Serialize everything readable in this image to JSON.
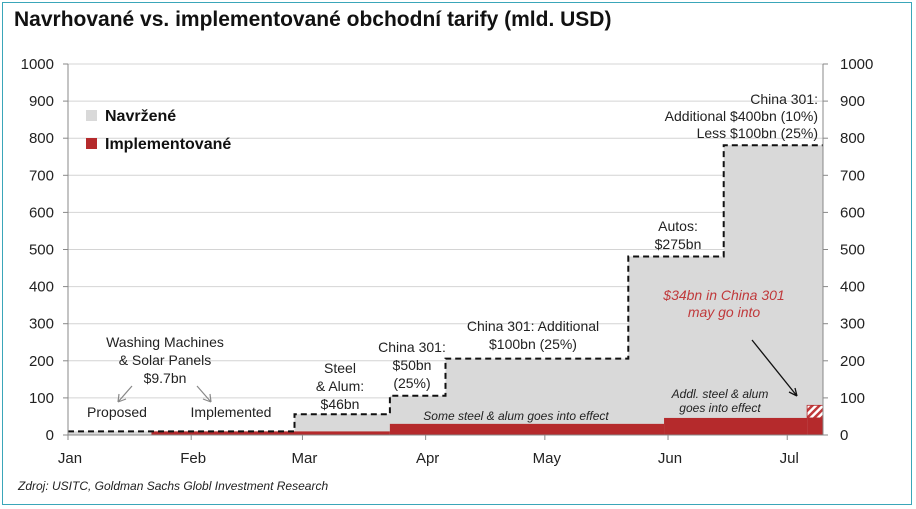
{
  "title": "Navrhované vs. implementované obchodní tarify (mld. USD)",
  "source": "Zdroj: USITC, Goldman Sachs Globl Investment Research",
  "colors": {
    "proposed": "#d9d9d9",
    "implemented": "#b52a2c",
    "accent_red_text": "#c0393b"
  },
  "chart_data": {
    "type": "area",
    "title": "Navrhované vs. implementované obchodní tarify (mld. USD)",
    "x_axis": {
      "ticks": [
        "Jan",
        "Feb",
        "Mar",
        "Apr",
        "May",
        "Jun",
        "Jul"
      ],
      "range": [
        "2018-01-01",
        "2018-07-10"
      ]
    },
    "y_axis": {
      "ticks": [
        "0",
        "100",
        "200",
        "300",
        "400",
        "500",
        "600",
        "700",
        "800",
        "900",
        "1000"
      ],
      "range": [
        0,
        1000
      ],
      "right_axis_mirrored": true
    },
    "grid": true,
    "legend": {
      "position": "top-left",
      "entries": [
        "Navržené",
        "Implementované"
      ]
    },
    "series": [
      {
        "name": "Navržené",
        "style": "step-area-dashed",
        "x": [
          "2018-01-01",
          "2018-02-27",
          "2018-03-23",
          "2018-04-06",
          "2018-05-22",
          "2018-06-15",
          "2018-07-10"
        ],
        "y": [
          9.7,
          56,
          106,
          206,
          481,
          781,
          781
        ]
      },
      {
        "name": "Implementované",
        "style": "step-area",
        "x": [
          "2018-01-01",
          "2018-01-22",
          "2018-03-23",
          "2018-05-31",
          "2018-07-06",
          "2018-07-10"
        ],
        "y": [
          0,
          9.7,
          30,
          46,
          80,
          80
        ]
      }
    ],
    "annotations": {
      "washing": [
        "Washing Machines",
        "& Solar Panels",
        "$9.7bn"
      ],
      "proposed_word": "Proposed",
      "implemented_word": "Implemented",
      "steel": [
        "Steel",
        "& Alum:",
        "$46bn"
      ],
      "china50": [
        "China 301:",
        "$50bn",
        "(25%)"
      ],
      "china100": [
        "China 301: Additional",
        "$100bn (25%)"
      ],
      "autos": [
        "Autos:",
        "$275bn"
      ],
      "china400": [
        "China 301:",
        "Additional $400bn (10%)",
        "Less $100bn (25%)"
      ],
      "red_note": [
        "$34bn in China 301",
        "may go into"
      ],
      "steel_effect": "Some steel & alum goes into effect",
      "addl_steel": [
        "Addl. steel & alum",
        "goes into effect"
      ]
    }
  }
}
